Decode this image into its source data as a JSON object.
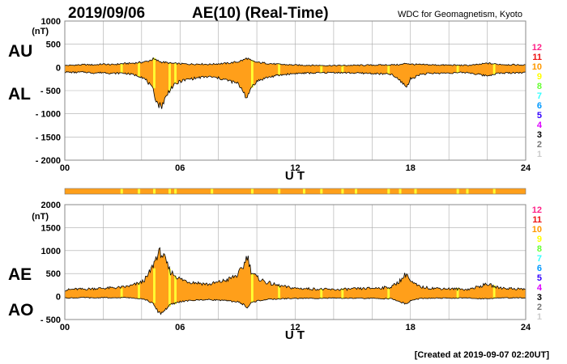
{
  "header": {
    "date": "2019/09/06",
    "title": "AE(10) (Real-Time)",
    "source": "WDC for Geomagnetism, Kyoto"
  },
  "footer": {
    "created": "[Created at 2019-09-07 02:20UT]"
  },
  "colors": {
    "fill": "#ff9f1a",
    "highlight": "#ffff33",
    "grid": "#aaaaaa",
    "curve": "#000000"
  },
  "station_legend": {
    "entries": [
      {
        "label": "12",
        "color": "#ff2288"
      },
      {
        "label": "11",
        "color": "#ee1111"
      },
      {
        "label": "10",
        "color": "#ff9900"
      },
      {
        "label": "9",
        "color": "#ffff00"
      },
      {
        "label": "8",
        "color": "#66ff33"
      },
      {
        "label": "7",
        "color": "#33ffff"
      },
      {
        "label": "6",
        "color": "#0099ff"
      },
      {
        "label": "5",
        "color": "#3300ff"
      },
      {
        "label": "4",
        "color": "#dd00ff"
      },
      {
        "label": "3",
        "color": "#000000"
      },
      {
        "label": "2",
        "color": "#777777"
      },
      {
        "label": "1",
        "color": "#cccccc"
      }
    ]
  },
  "chart_data": [
    {
      "type": "area",
      "panel": "AU/AL",
      "series": [
        {
          "name": "AU",
          "x": [
            0,
            0.5,
            1,
            1.5,
            2,
            2.5,
            3,
            3.5,
            4,
            4.3,
            4.6,
            4.8,
            5,
            5.2,
            5.5,
            6,
            6.5,
            7,
            7.5,
            8,
            8.5,
            9,
            9.3,
            9.5,
            9.7,
            10,
            10.5,
            11,
            11.5,
            12,
            13,
            14,
            15,
            16,
            17,
            17.5,
            17.8,
            18,
            18.5,
            19,
            20,
            21,
            21.5,
            22,
            22.5,
            23,
            24
          ],
          "y": [
            40,
            50,
            60,
            55,
            70,
            60,
            80,
            90,
            110,
            130,
            180,
            150,
            120,
            110,
            90,
            80,
            70,
            75,
            65,
            80,
            90,
            120,
            160,
            200,
            140,
            110,
            90,
            70,
            60,
            50,
            45,
            40,
            45,
            50,
            55,
            60,
            90,
            70,
            60,
            55,
            50,
            45,
            60,
            90,
            70,
            60,
            50
          ]
        },
        {
          "name": "AL",
          "x": [
            0,
            0.5,
            1,
            1.5,
            2,
            2.5,
            3,
            3.5,
            4,
            4.3,
            4.6,
            4.8,
            5,
            5.2,
            5.5,
            6,
            6.5,
            7,
            7.5,
            8,
            8.5,
            9,
            9.3,
            9.5,
            9.7,
            10,
            10.5,
            11,
            11.5,
            12,
            13,
            14,
            15,
            16,
            17,
            17.5,
            17.8,
            18,
            18.5,
            19,
            20,
            21,
            21.5,
            22,
            22.5,
            23,
            24
          ],
          "y": [
            -100,
            -110,
            -100,
            -120,
            -110,
            -130,
            -120,
            -150,
            -200,
            -300,
            -500,
            -750,
            -850,
            -700,
            -450,
            -300,
            -250,
            -220,
            -200,
            -230,
            -280,
            -350,
            -500,
            -700,
            -420,
            -300,
            -220,
            -180,
            -150,
            -130,
            -120,
            -110,
            -120,
            -130,
            -150,
            -300,
            -420,
            -250,
            -150,
            -130,
            -120,
            -110,
            -150,
            -180,
            -130,
            -120,
            -110
          ]
        }
      ],
      "ylabels": [
        "AU",
        "AL"
      ],
      "yunit": "(nT)",
      "xlabel": "U T",
      "xlim": [
        0,
        24
      ],
      "ylim": [
        -2000,
        1000
      ],
      "xticks": [
        "00",
        "06",
        "12",
        "18",
        "24"
      ],
      "yticks": [
        "1000",
        "500",
        "0",
        "- 500",
        "- 1000",
        "- 1500",
        "- 2000"
      ],
      "grid": true
    },
    {
      "type": "area",
      "panel": "AE/AO",
      "series": [
        {
          "name": "AE",
          "x": [
            0,
            0.5,
            1,
            1.5,
            2,
            2.5,
            3,
            3.5,
            4,
            4.3,
            4.6,
            4.8,
            5,
            5.2,
            5.5,
            6,
            6.5,
            7,
            7.5,
            8,
            8.5,
            9,
            9.3,
            9.5,
            9.7,
            10,
            10.5,
            11,
            11.5,
            12,
            13,
            14,
            15,
            16,
            17,
            17.5,
            17.8,
            18,
            18.5,
            19,
            20,
            21,
            21.5,
            22,
            22.5,
            23,
            24
          ],
          "y": [
            140,
            160,
            160,
            175,
            180,
            190,
            200,
            240,
            310,
            430,
            680,
            900,
            970,
            810,
            540,
            380,
            320,
            295,
            265,
            310,
            370,
            470,
            660,
            900,
            560,
            410,
            310,
            250,
            210,
            180,
            165,
            150,
            165,
            180,
            205,
            360,
            510,
            320,
            210,
            185,
            170,
            155,
            210,
            270,
            200,
            180,
            160
          ]
        },
        {
          "name": "AO",
          "x": [
            0,
            0.5,
            1,
            1.5,
            2,
            2.5,
            3,
            3.5,
            4,
            4.3,
            4.6,
            4.8,
            5,
            5.2,
            5.5,
            6,
            6.5,
            7,
            7.5,
            8,
            8.5,
            9,
            9.3,
            9.5,
            9.7,
            10,
            10.5,
            11,
            11.5,
            12,
            13,
            14,
            15,
            16,
            17,
            17.5,
            17.8,
            18,
            18.5,
            19,
            20,
            21,
            21.5,
            22,
            22.5,
            23,
            24
          ],
          "y": [
            -30,
            -30,
            -20,
            -33,
            -20,
            -35,
            -20,
            -30,
            -45,
            -85,
            -160,
            -300,
            -365,
            -295,
            -180,
            -110,
            -90,
            -73,
            -68,
            -75,
            -95,
            -115,
            -170,
            -250,
            -140,
            -95,
            -65,
            -55,
            -45,
            -40,
            -38,
            -35,
            -38,
            -40,
            -48,
            -120,
            -165,
            -90,
            -45,
            -38,
            -35,
            -33,
            -45,
            -45,
            -30,
            -30,
            -30
          ]
        }
      ],
      "ylabels": [
        "AE",
        "AO"
      ],
      "yunit": "(nT)",
      "xlabel": "U T",
      "xlim": [
        0,
        24
      ],
      "ylim": [
        -500,
        2000
      ],
      "xticks": [
        "00",
        "06",
        "12",
        "18",
        "24"
      ],
      "yticks": [
        "2000",
        "1500",
        "1000",
        "500",
        "0",
        "- 500"
      ],
      "grid": true
    }
  ]
}
